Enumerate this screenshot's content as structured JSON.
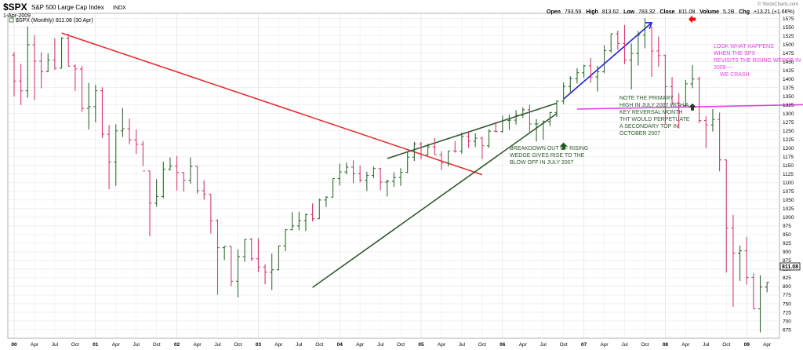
{
  "header": {
    "symbol": "$SPX",
    "description": "S&P 500 Large Cap Index",
    "exchange": "INDX",
    "date": "1-Apr-2009",
    "source": "© StockCharts.com",
    "open_label": "Open",
    "open": "793.59",
    "high_label": "High",
    "high": "813.62",
    "low_label": "Low",
    "low": "783.32",
    "close_label": "Close",
    "close": "811.08",
    "volume_label": "Volume",
    "volume": "5.2B",
    "chg_label": "Chg",
    "chg": "+13.21 (+1.66%)"
  },
  "legend": {
    "text": "$SPX (Monthly) 811.08 (30 Apr)"
  },
  "last_price": "811.08",
  "colors": {
    "up": "#2e6b2e",
    "down": "#d63a6e",
    "red_line": "#e03030",
    "green_line": "#2f5a2f",
    "blue_line": "#2020e0",
    "magenta_line": "#e040e0",
    "note_green": "#2e5a2e",
    "note_magenta": "#e040e0",
    "arrow_red": "#ff0000"
  },
  "annotations": {
    "breakdown": [
      "BREAKDOWN OUT OF RISING",
      "WEDGE GIVES RISE TO THE",
      "BLOW OFF IN  JULY 2007"
    ],
    "primary_high": [
      "NOTE THE PRIMARY",
      "HIGH IN JULY 2007 WITH A",
      "KEY REVERSAL MONTH",
      "THT WOULD PERPETUATE",
      "A SECONDARY TOP IN",
      "OCTOBER 2007"
    ],
    "look": [
      "LOOK WHAT HAPPENS",
      "WHEN THE SPX",
      "REVISITS THE RISING WEDGE IN",
      "2009----",
      "WE CRASH"
    ]
  },
  "chart_data": {
    "type": "ohlc",
    "title": "$SPX S&P 500 Large Cap Index",
    "series_name": "$SPX (Monthly)",
    "y_ticks": [
      675,
      700,
      725,
      750,
      775,
      800,
      825,
      850,
      875,
      900,
      925,
      950,
      975,
      1000,
      1025,
      1050,
      1075,
      1100,
      1125,
      1150,
      1175,
      1200,
      1225,
      1250,
      1275,
      1300,
      1325,
      1350,
      1375,
      1400,
      1425,
      1450,
      1475,
      1500,
      1525,
      1550,
      1575
    ],
    "ylim": [
      650,
      1590
    ],
    "x_labels": [
      {
        "label": "00",
        "month": 0,
        "bold": true
      },
      {
        "label": "Apr",
        "month": 3
      },
      {
        "label": "Jul",
        "month": 6
      },
      {
        "label": "Oct",
        "month": 9
      },
      {
        "label": "01",
        "month": 12,
        "bold": true
      },
      {
        "label": "Apr",
        "month": 15
      },
      {
        "label": "Jul",
        "month": 18
      },
      {
        "label": "Oct",
        "month": 21
      },
      {
        "label": "02",
        "month": 24,
        "bold": true
      },
      {
        "label": "Apr",
        "month": 27
      },
      {
        "label": "Jul",
        "month": 30
      },
      {
        "label": "Oct",
        "month": 33
      },
      {
        "label": "03",
        "month": 36,
        "bold": true
      },
      {
        "label": "Apr",
        "month": 39
      },
      {
        "label": "Jul",
        "month": 42
      },
      {
        "label": "Oct",
        "month": 45
      },
      {
        "label": "04",
        "month": 48,
        "bold": true
      },
      {
        "label": "Apr",
        "month": 51
      },
      {
        "label": "Jul",
        "month": 54
      },
      {
        "label": "Oct",
        "month": 57
      },
      {
        "label": "05",
        "month": 60,
        "bold": true
      },
      {
        "label": "Apr",
        "month": 63
      },
      {
        "label": "Jul",
        "month": 66
      },
      {
        "label": "Oct",
        "month": 69
      },
      {
        "label": "06",
        "month": 72,
        "bold": true
      },
      {
        "label": "Apr",
        "month": 75
      },
      {
        "label": "Jul",
        "month": 78
      },
      {
        "label": "Oct",
        "month": 81
      },
      {
        "label": "07",
        "month": 84,
        "bold": true
      },
      {
        "label": "Apr",
        "month": 87
      },
      {
        "label": "Jul",
        "month": 90
      },
      {
        "label": "Oct",
        "month": 93
      },
      {
        "label": "08",
        "month": 96,
        "bold": true
      },
      {
        "label": "Apr",
        "month": 99
      },
      {
        "label": "Jul",
        "month": 102
      },
      {
        "label": "Oct",
        "month": 105
      },
      {
        "label": "09",
        "month": 108,
        "bold": true
      },
      {
        "label": "Apr",
        "month": 111
      }
    ],
    "bars": [
      [
        1469,
        1478,
        1350,
        1394
      ],
      [
        1394,
        1444,
        1325,
        1366
      ],
      [
        1366,
        1552,
        1346,
        1499
      ],
      [
        1499,
        1527,
        1339,
        1452
      ],
      [
        1452,
        1477,
        1373,
        1421
      ],
      [
        1421,
        1474,
        1420,
        1455
      ],
      [
        1455,
        1518,
        1427,
        1431
      ],
      [
        1431,
        1521,
        1431,
        1518
      ],
      [
        1518,
        1531,
        1436,
        1437
      ],
      [
        1437,
        1443,
        1365,
        1429
      ],
      [
        1429,
        1438,
        1305,
        1315
      ],
      [
        1315,
        1389,
        1254,
        1320
      ],
      [
        1320,
        1383,
        1275,
        1366
      ],
      [
        1366,
        1376,
        1229,
        1240
      ],
      [
        1240,
        1267,
        1081,
        1160
      ],
      [
        1160,
        1269,
        1091,
        1250
      ],
      [
        1250,
        1316,
        1232,
        1256
      ],
      [
        1256,
        1286,
        1211,
        1224
      ],
      [
        1224,
        1254,
        1183,
        1211
      ],
      [
        1211,
        1220,
        1148,
        1134
      ],
      [
        1134,
        1134,
        945,
        1041
      ],
      [
        1041,
        1110,
        1031,
        1060
      ],
      [
        1060,
        1161,
        1055,
        1139
      ],
      [
        1139,
        1173,
        1135,
        1148
      ],
      [
        1148,
        1177,
        1077,
        1130
      ],
      [
        1130,
        1130,
        1074,
        1107
      ],
      [
        1107,
        1173,
        1097,
        1147
      ],
      [
        1147,
        1147,
        1069,
        1077
      ],
      [
        1077,
        1107,
        1051,
        1067
      ],
      [
        1067,
        1067,
        953,
        990
      ],
      [
        990,
        994,
        776,
        912
      ],
      [
        912,
        916,
        876,
        916
      ],
      [
        916,
        916,
        800,
        815
      ],
      [
        815,
        907,
        768,
        886
      ],
      [
        886,
        937,
        871,
        936
      ],
      [
        936,
        940,
        874,
        880
      ],
      [
        880,
        939,
        841,
        856
      ],
      [
        856,
        864,
        806,
        841
      ],
      [
        841,
        895,
        789,
        848
      ],
      [
        848,
        918,
        847,
        917
      ],
      [
        917,
        965,
        902,
        964
      ],
      [
        964,
        1015,
        963,
        975
      ],
      [
        975,
        1016,
        963,
        990
      ],
      [
        990,
        1011,
        960,
        1008
      ],
      [
        1008,
        1040,
        988,
        996
      ],
      [
        996,
        1054,
        995,
        1050
      ],
      [
        1050,
        1061,
        1030,
        1058
      ],
      [
        1058,
        1112,
        1058,
        1112
      ],
      [
        1112,
        1155,
        1092,
        1131
      ],
      [
        1131,
        1158,
        1124,
        1145
      ],
      [
        1145,
        1165,
        1099,
        1126
      ],
      [
        1126,
        1150,
        1101,
        1107
      ],
      [
        1107,
        1132,
        1076,
        1121
      ],
      [
        1121,
        1147,
        1113,
        1141
      ],
      [
        1141,
        1143,
        1078,
        1102
      ],
      [
        1102,
        1109,
        1060,
        1104
      ],
      [
        1104,
        1130,
        1088,
        1115
      ],
      [
        1115,
        1142,
        1091,
        1130
      ],
      [
        1130,
        1188,
        1128,
        1174
      ],
      [
        1174,
        1218,
        1163,
        1212
      ],
      [
        1212,
        1218,
        1168,
        1181
      ],
      [
        1181,
        1213,
        1180,
        1204
      ],
      [
        1204,
        1229,
        1181,
        1181
      ],
      [
        1181,
        1191,
        1137,
        1157
      ],
      [
        1157,
        1192,
        1147,
        1192
      ],
      [
        1192,
        1220,
        1187,
        1191
      ],
      [
        1191,
        1245,
        1184,
        1234
      ],
      [
        1234,
        1245,
        1201,
        1220
      ],
      [
        1220,
        1243,
        1203,
        1229
      ],
      [
        1229,
        1233,
        1168,
        1207
      ],
      [
        1207,
        1255,
        1201,
        1249
      ],
      [
        1249,
        1275,
        1246,
        1248
      ],
      [
        1248,
        1294,
        1245,
        1280
      ],
      [
        1280,
        1297,
        1253,
        1281
      ],
      [
        1281,
        1310,
        1268,
        1295
      ],
      [
        1295,
        1318,
        1288,
        1311
      ],
      [
        1311,
        1326,
        1245,
        1270
      ],
      [
        1270,
        1284,
        1219,
        1270
      ],
      [
        1270,
        1280,
        1224,
        1277
      ],
      [
        1277,
        1305,
        1264,
        1303
      ],
      [
        1303,
        1338,
        1290,
        1336
      ],
      [
        1336,
        1390,
        1327,
        1378
      ],
      [
        1378,
        1408,
        1360,
        1401
      ],
      [
        1401,
        1431,
        1387,
        1418
      ],
      [
        1418,
        1441,
        1403,
        1438
      ],
      [
        1438,
        1461,
        1389,
        1406
      ],
      [
        1406,
        1438,
        1364,
        1421
      ],
      [
        1421,
        1498,
        1417,
        1482
      ],
      [
        1482,
        1531,
        1476,
        1531
      ],
      [
        1531,
        1540,
        1484,
        1503
      ],
      [
        1503,
        1556,
        1443,
        1455
      ],
      [
        1455,
        1503,
        1370,
        1474
      ],
      [
        1474,
        1539,
        1439,
        1527
      ],
      [
        1527,
        1576,
        1489,
        1549
      ],
      [
        1549,
        1552,
        1406,
        1481
      ],
      [
        1481,
        1523,
        1435,
        1468
      ],
      [
        1468,
        1471,
        1270,
        1378
      ],
      [
        1378,
        1406,
        1325,
        1331
      ],
      [
        1331,
        1359,
        1257,
        1323
      ],
      [
        1323,
        1397,
        1320,
        1386
      ],
      [
        1386,
        1440,
        1373,
        1400
      ],
      [
        1400,
        1406,
        1272,
        1280
      ],
      [
        1280,
        1292,
        1200,
        1267
      ],
      [
        1267,
        1313,
        1248,
        1283
      ],
      [
        1283,
        1303,
        1133,
        1166
      ],
      [
        1166,
        1167,
        840,
        969
      ],
      [
        969,
        1007,
        741,
        896
      ],
      [
        896,
        918,
        816,
        903
      ],
      [
        903,
        943,
        805,
        826
      ],
      [
        826,
        838,
        735,
        735
      ],
      [
        735,
        832,
        667,
        798
      ],
      [
        798,
        813,
        783,
        811
      ]
    ],
    "trendlines": [
      {
        "color": "red",
        "from": [
          7,
          1533
        ],
        "to": [
          69,
          1123
        ]
      },
      {
        "color": "green",
        "from": [
          44,
          797
        ],
        "to": [
          80,
          1300
        ]
      },
      {
        "color": "green",
        "from": [
          55,
          1170
        ],
        "to": [
          80,
          1330
        ]
      },
      {
        "color": "blue",
        "from": [
          81,
          1342
        ],
        "to": [
          94,
          1563
        ]
      },
      {
        "color": "magenta",
        "from": [
          83,
          1313
        ],
        "to": [
          120,
          1327
        ]
      }
    ],
    "markers": [
      {
        "type": "arrow-up",
        "color": "green",
        "month": 81,
        "price": 1205
      },
      {
        "type": "arrow-up",
        "color": "dark",
        "month": 100,
        "price": 1318
      },
      {
        "type": "arrow-left",
        "color": "red",
        "month": 100,
        "price": 1573
      }
    ]
  }
}
